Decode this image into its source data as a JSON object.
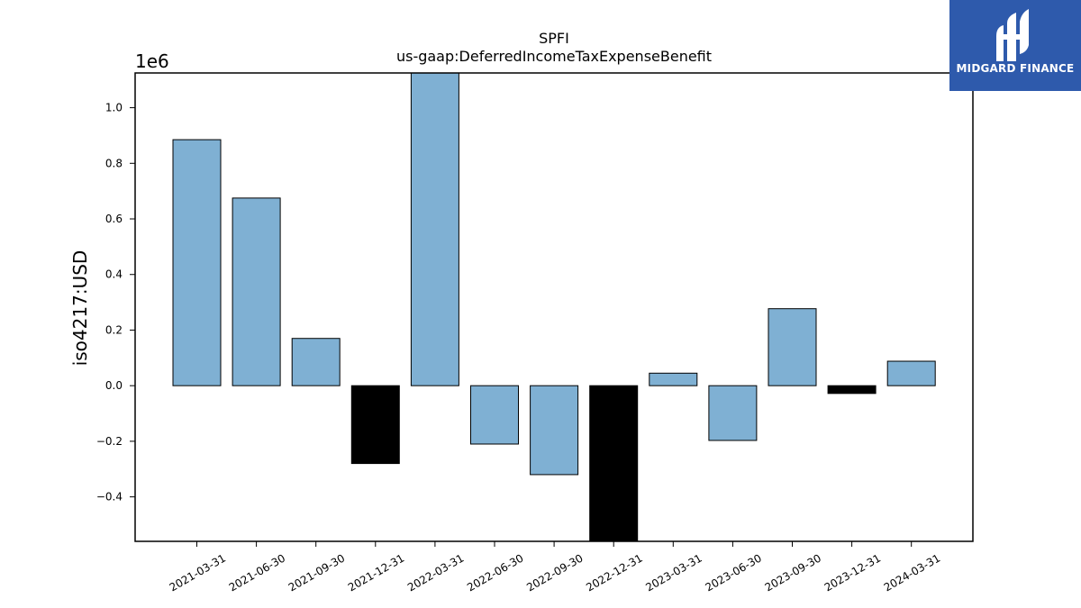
{
  "brand": {
    "name": "MIDGARD FINANCE",
    "icon": "midgard-logo-icon",
    "color": "#2e5aac"
  },
  "chart_data": {
    "type": "bar",
    "title": "SPFI",
    "subtitle": "us-gaap:DeferredIncomeTaxExpenseBenefit",
    "ylabel": "iso4217:USD",
    "xlabel": "",
    "y_scale_label": "1e6",
    "y_tick_labels": [
      "−0.4",
      "−0.2",
      "0.0",
      "0.2",
      "0.4",
      "0.6",
      "0.8",
      "1.0"
    ],
    "y_ticks": [
      -0.4,
      -0.2,
      0.0,
      0.2,
      0.4,
      0.6,
      0.8,
      1.0
    ],
    "ylim": [
      -0.56,
      1.125
    ],
    "grid": false,
    "categories": [
      "2021-03-31",
      "2021-06-30",
      "2021-09-30",
      "2021-12-31",
      "2022-03-31",
      "2022-06-30",
      "2022-09-30",
      "2022-12-31",
      "2023-03-31",
      "2023-06-30",
      "2023-09-30",
      "2023-12-31",
      "2024-03-31"
    ],
    "values": [
      0.885,
      0.675,
      0.17,
      -0.28,
      1.16,
      -0.21,
      -0.32,
      -0.58,
      0.045,
      -0.197,
      0.277,
      -0.028,
      0.088
    ],
    "bar_colors": [
      "#7fb0d3",
      "#7fb0d3",
      "#7fb0d3",
      "#000000",
      "#7fb0d3",
      "#7fb0d3",
      "#7fb0d3",
      "#000000",
      "#7fb0d3",
      "#7fb0d3",
      "#7fb0d3",
      "#000000",
      "#7fb0d3"
    ],
    "colors": {
      "positive": "#7fb0d3",
      "negative": "#7fb0d3",
      "q4_highlight": "#000000"
    }
  }
}
